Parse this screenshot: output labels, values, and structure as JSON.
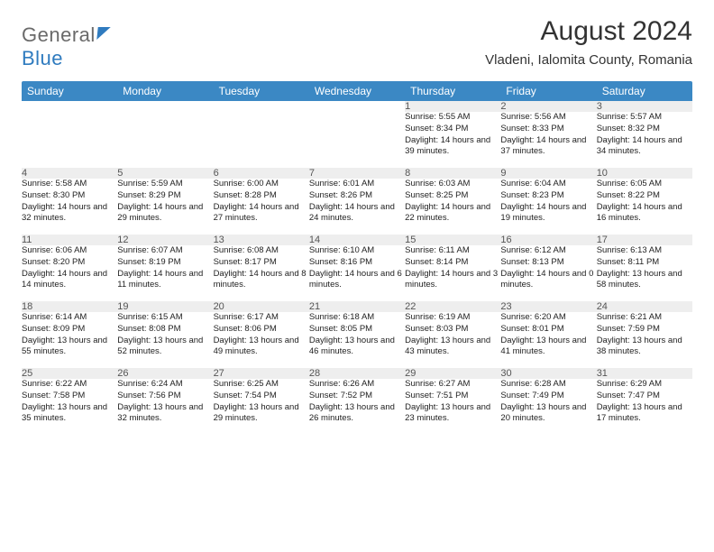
{
  "brand": {
    "part1": "General",
    "part2": "Blue"
  },
  "title": "August 2024",
  "location": "Vladeni, Ialomita County, Romania",
  "colors": {
    "header_bg": "#3b88c4",
    "header_text": "#ffffff",
    "daynum_bg": "#eeeeee",
    "rule": "#2a5e86",
    "brand_gray": "#6a6a6a",
    "brand_blue": "#2f7bbf"
  },
  "weekdays": [
    "Sunday",
    "Monday",
    "Tuesday",
    "Wednesday",
    "Thursday",
    "Friday",
    "Saturday"
  ],
  "weeks": [
    [
      null,
      null,
      null,
      null,
      {
        "n": "1",
        "sr": "5:55 AM",
        "ss": "8:34 PM",
        "dl": "14 hours and 39 minutes."
      },
      {
        "n": "2",
        "sr": "5:56 AM",
        "ss": "8:33 PM",
        "dl": "14 hours and 37 minutes."
      },
      {
        "n": "3",
        "sr": "5:57 AM",
        "ss": "8:32 PM",
        "dl": "14 hours and 34 minutes."
      }
    ],
    [
      {
        "n": "4",
        "sr": "5:58 AM",
        "ss": "8:30 PM",
        "dl": "14 hours and 32 minutes."
      },
      {
        "n": "5",
        "sr": "5:59 AM",
        "ss": "8:29 PM",
        "dl": "14 hours and 29 minutes."
      },
      {
        "n": "6",
        "sr": "6:00 AM",
        "ss": "8:28 PM",
        "dl": "14 hours and 27 minutes."
      },
      {
        "n": "7",
        "sr": "6:01 AM",
        "ss": "8:26 PM",
        "dl": "14 hours and 24 minutes."
      },
      {
        "n": "8",
        "sr": "6:03 AM",
        "ss": "8:25 PM",
        "dl": "14 hours and 22 minutes."
      },
      {
        "n": "9",
        "sr": "6:04 AM",
        "ss": "8:23 PM",
        "dl": "14 hours and 19 minutes."
      },
      {
        "n": "10",
        "sr": "6:05 AM",
        "ss": "8:22 PM",
        "dl": "14 hours and 16 minutes."
      }
    ],
    [
      {
        "n": "11",
        "sr": "6:06 AM",
        "ss": "8:20 PM",
        "dl": "14 hours and 14 minutes."
      },
      {
        "n": "12",
        "sr": "6:07 AM",
        "ss": "8:19 PM",
        "dl": "14 hours and 11 minutes."
      },
      {
        "n": "13",
        "sr": "6:08 AM",
        "ss": "8:17 PM",
        "dl": "14 hours and 8 minutes."
      },
      {
        "n": "14",
        "sr": "6:10 AM",
        "ss": "8:16 PM",
        "dl": "14 hours and 6 minutes."
      },
      {
        "n": "15",
        "sr": "6:11 AM",
        "ss": "8:14 PM",
        "dl": "14 hours and 3 minutes."
      },
      {
        "n": "16",
        "sr": "6:12 AM",
        "ss": "8:13 PM",
        "dl": "14 hours and 0 minutes."
      },
      {
        "n": "17",
        "sr": "6:13 AM",
        "ss": "8:11 PM",
        "dl": "13 hours and 58 minutes."
      }
    ],
    [
      {
        "n": "18",
        "sr": "6:14 AM",
        "ss": "8:09 PM",
        "dl": "13 hours and 55 minutes."
      },
      {
        "n": "19",
        "sr": "6:15 AM",
        "ss": "8:08 PM",
        "dl": "13 hours and 52 minutes."
      },
      {
        "n": "20",
        "sr": "6:17 AM",
        "ss": "8:06 PM",
        "dl": "13 hours and 49 minutes."
      },
      {
        "n": "21",
        "sr": "6:18 AM",
        "ss": "8:05 PM",
        "dl": "13 hours and 46 minutes."
      },
      {
        "n": "22",
        "sr": "6:19 AM",
        "ss": "8:03 PM",
        "dl": "13 hours and 43 minutes."
      },
      {
        "n": "23",
        "sr": "6:20 AM",
        "ss": "8:01 PM",
        "dl": "13 hours and 41 minutes."
      },
      {
        "n": "24",
        "sr": "6:21 AM",
        "ss": "7:59 PM",
        "dl": "13 hours and 38 minutes."
      }
    ],
    [
      {
        "n": "25",
        "sr": "6:22 AM",
        "ss": "7:58 PM",
        "dl": "13 hours and 35 minutes."
      },
      {
        "n": "26",
        "sr": "6:24 AM",
        "ss": "7:56 PM",
        "dl": "13 hours and 32 minutes."
      },
      {
        "n": "27",
        "sr": "6:25 AM",
        "ss": "7:54 PM",
        "dl": "13 hours and 29 minutes."
      },
      {
        "n": "28",
        "sr": "6:26 AM",
        "ss": "7:52 PM",
        "dl": "13 hours and 26 minutes."
      },
      {
        "n": "29",
        "sr": "6:27 AM",
        "ss": "7:51 PM",
        "dl": "13 hours and 23 minutes."
      },
      {
        "n": "30",
        "sr": "6:28 AM",
        "ss": "7:49 PM",
        "dl": "13 hours and 20 minutes."
      },
      {
        "n": "31",
        "sr": "6:29 AM",
        "ss": "7:47 PM",
        "dl": "13 hours and 17 minutes."
      }
    ]
  ],
  "labels": {
    "sunrise": "Sunrise:",
    "sunset": "Sunset:",
    "daylight": "Daylight:"
  }
}
